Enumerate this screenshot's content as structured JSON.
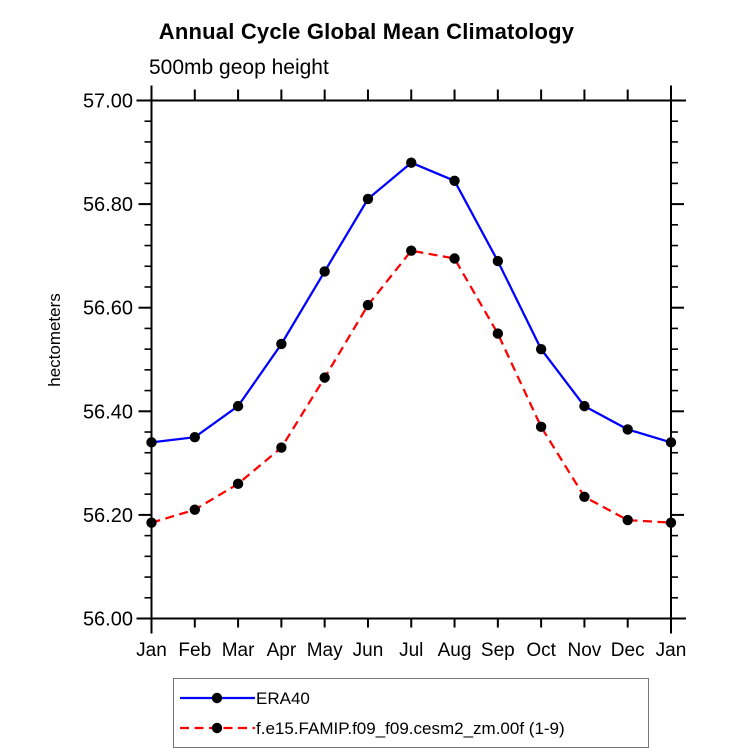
{
  "chart_data": {
    "type": "line",
    "title": "Annual Cycle Global Mean Climatology",
    "subtitle": "500mb geop height",
    "ylabel": "hectometers",
    "categories": [
      "Jan",
      "Feb",
      "Mar",
      "Apr",
      "May",
      "Jun",
      "Jul",
      "Aug",
      "Sep",
      "Oct",
      "Nov",
      "Dec",
      "Jan"
    ],
    "ylim": [
      56.0,
      57.0
    ],
    "ytick_major_step": 0.2,
    "ytick_minor_step": 0.04,
    "ytick_labels": [
      "56.00",
      "56.20",
      "56.40",
      "56.60",
      "56.80",
      "57.00"
    ],
    "grid": false,
    "legend_position": "bottom-left-box",
    "axis_color": "#000000",
    "marker_color": "#000000",
    "series": [
      {
        "name": "ERA40",
        "color": "#0000ff",
        "line_style": "solid",
        "marker": "filled-circle",
        "values": [
          56.34,
          56.35,
          56.41,
          56.53,
          56.67,
          56.81,
          56.88,
          56.845,
          56.69,
          56.52,
          56.41,
          56.365,
          56.34
        ]
      },
      {
        "name": "f.e15.FAMIP.f09_f09.cesm2_zm.00f (1-9)",
        "color": "#ff0000",
        "line_style": "dashed",
        "marker": "filled-circle",
        "values": [
          56.185,
          56.21,
          56.26,
          56.33,
          56.465,
          56.605,
          56.71,
          56.695,
          56.55,
          56.37,
          56.235,
          56.19,
          56.185
        ]
      }
    ]
  }
}
